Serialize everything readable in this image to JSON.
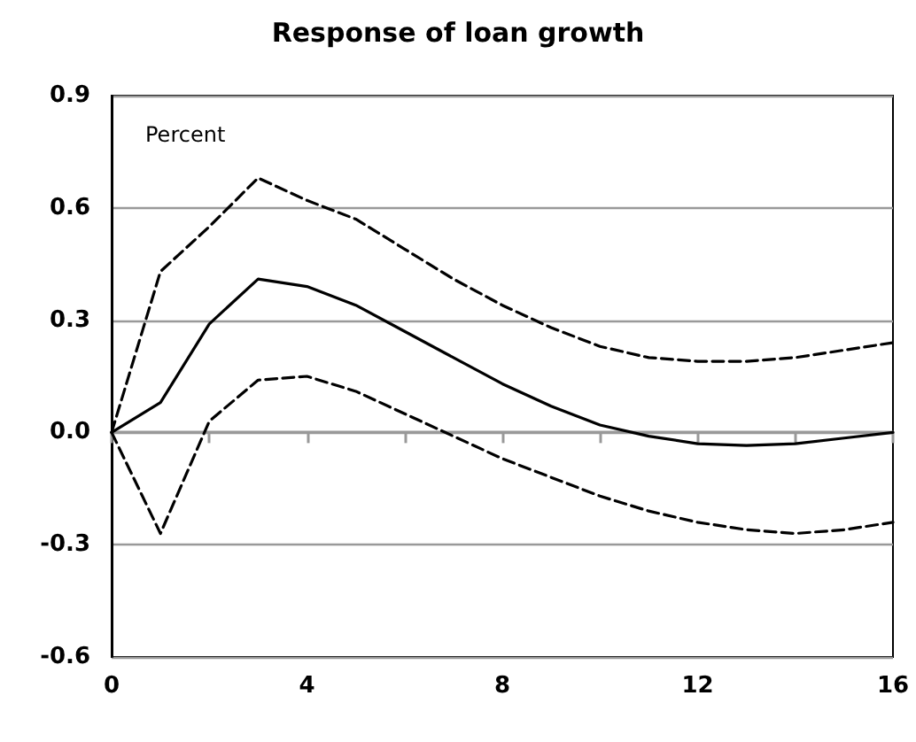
{
  "chart_data": {
    "type": "line",
    "title": "Response of loan growth",
    "annotations": [
      "Percent"
    ],
    "x": [
      0,
      1,
      2,
      3,
      4,
      5,
      6,
      7,
      8,
      9,
      10,
      11,
      12,
      13,
      14,
      15,
      16
    ],
    "series": [
      {
        "color": "#000000",
        "line_style": "dashed",
        "values": [
          0,
          0.43,
          0.55,
          0.68,
          0.62,
          0.57,
          0.49,
          0.41,
          0.34,
          0.28,
          0.23,
          0.2,
          0.19,
          0.19,
          0.2,
          0.22,
          0.24
        ]
      },
      {
        "color": "#000000",
        "line_style": "solid",
        "values": [
          0,
          0.08,
          0.29,
          0.41,
          0.39,
          0.34,
          0.27,
          0.2,
          0.13,
          0.07,
          0.02,
          -0.01,
          -0.03,
          -0.035,
          -0.03,
          -0.015,
          0
        ]
      },
      {
        "color": "#000000",
        "line_style": "dashed",
        "values": [
          0,
          -0.27,
          0.03,
          0.14,
          0.15,
          0.11,
          0.05,
          -0.01,
          -0.07,
          -0.12,
          -0.17,
          -0.21,
          -0.24,
          -0.26,
          -0.27,
          -0.26,
          -0.24
        ]
      }
    ],
    "xlim": [
      0,
      16
    ],
    "xticks": [
      0,
      {
        "value": 2,
        "label": null
      },
      4,
      {
        "value": 6,
        "label": null
      },
      8,
      {
        "value": 10,
        "label": null
      },
      12,
      {
        "value": 14,
        "label": null
      },
      16
    ],
    "ylim": [
      -0.6,
      0.9
    ],
    "yticks": [
      -0.6,
      -0.3,
      {
        "value": 0,
        "label": "0.0"
      },
      0.3,
      0.6,
      0.9
    ],
    "grid": "y",
    "marker": "none"
  }
}
